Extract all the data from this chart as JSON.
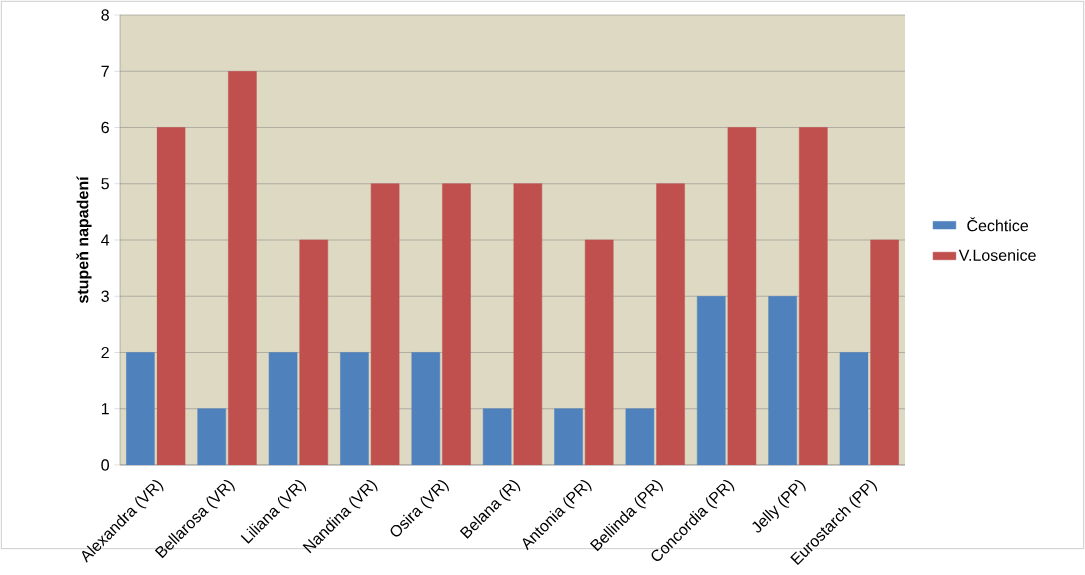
{
  "chart_data": {
    "type": "bar",
    "ylabel": "stupeň napadení",
    "categories": [
      "Alexandra (VR)",
      "Bellarosa (VR)",
      "Liliana (VR)",
      "Nandina (VR)",
      "Osira (VR)",
      "Belana (R)",
      "Antonia (PR)",
      "Bellinda (PR)",
      "Concordia (PR)",
      "Jelly (PP)",
      "Eurostarch (PP)"
    ],
    "series": [
      {
        "name": "Čechtice",
        "color": "#4f81bd",
        "values": [
          2,
          1,
          2,
          2,
          2,
          1,
          1,
          1,
          3,
          3,
          2
        ]
      },
      {
        "name": "V.Losenice",
        "color": "#c0504d",
        "values": [
          6,
          7,
          4,
          5,
          5,
          5,
          4,
          5,
          6,
          6,
          4
        ]
      }
    ],
    "ylim": [
      0,
      8
    ],
    "yticks": [
      0,
      1,
      2,
      3,
      4,
      5,
      6,
      7,
      8
    ],
    "grid": "y",
    "legend": "right"
  }
}
